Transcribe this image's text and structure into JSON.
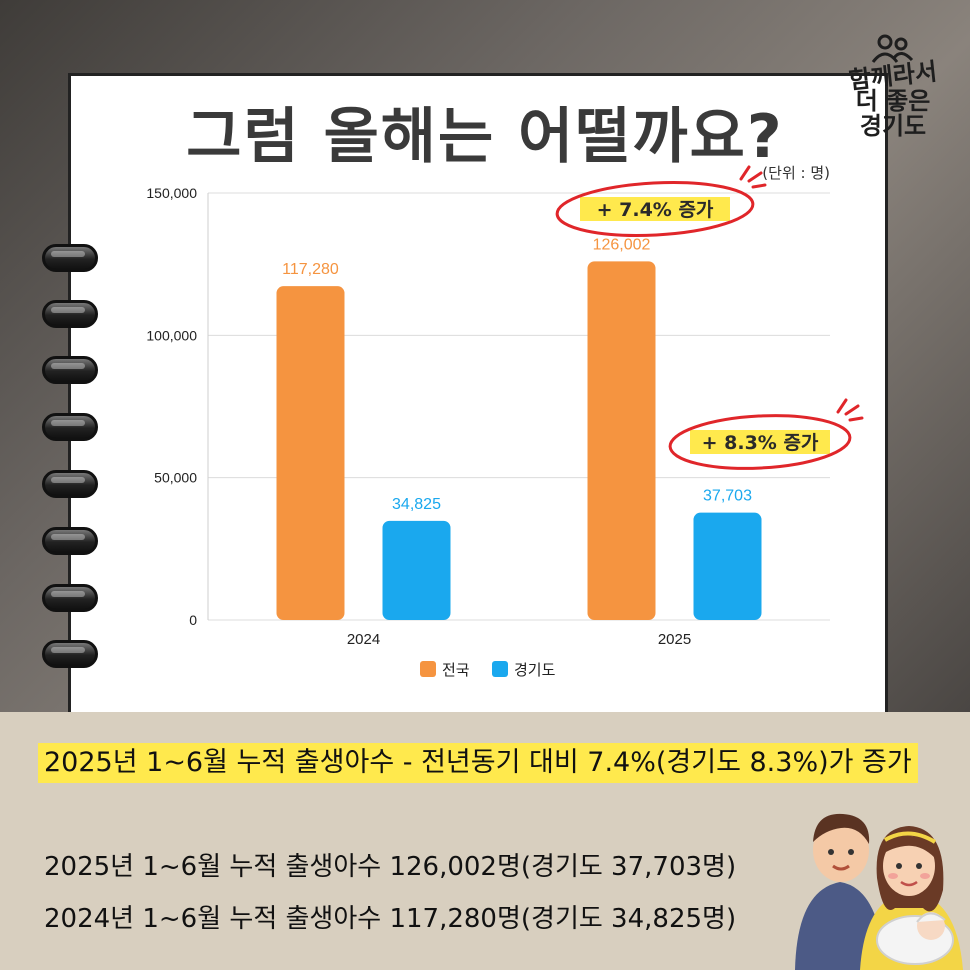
{
  "header": {
    "title": "그럼 올해는 어떨까요?",
    "unit": "(단위 : 명)"
  },
  "logo": {
    "line1": "함께라서",
    "line2": "더 좋은",
    "line3": "경기도"
  },
  "annotations": {
    "national": "+ 7.4% 증가",
    "gyeonggi": "+ 8.3% 증가"
  },
  "chart_data": {
    "type": "bar",
    "categories": [
      "2024",
      "2025"
    ],
    "series": [
      {
        "name": "전국",
        "values": [
          117280,
          126002
        ],
        "labels": [
          "117,280",
          "126,002"
        ],
        "color": "#f59440"
      },
      {
        "name": "경기도",
        "values": [
          34825,
          37703
        ],
        "labels": [
          "34,825",
          "37,703"
        ],
        "color": "#1aa8ee"
      }
    ],
    "ylim": [
      0,
      150000
    ],
    "yticks": [
      0,
      50000,
      100000,
      150000
    ],
    "ytick_labels": [
      "0",
      "50,000",
      "100,000",
      "150,000"
    ],
    "grid": true,
    "legend": "bottom"
  },
  "highlight_text": "2025년 1~6월 누적 출생아수 - 전년동기  대비 7.4%(경기도 8.3%)가 증가",
  "lines": [
    "2025년 1~6월 누적 출생아수 126,002명(경기도 37,703명)",
    "2024년 1~6월 누적 출생아수 117,280명(경기도 34,825명)"
  ],
  "colors": {
    "national": "#f59440",
    "gyeonggi": "#1aa8ee",
    "highlight": "#ffe94d",
    "circle": "#e0262a",
    "bottom_bg": "#d8cfbf"
  },
  "icons": {
    "logo": "people-icon",
    "illustration": "family-illustration"
  }
}
